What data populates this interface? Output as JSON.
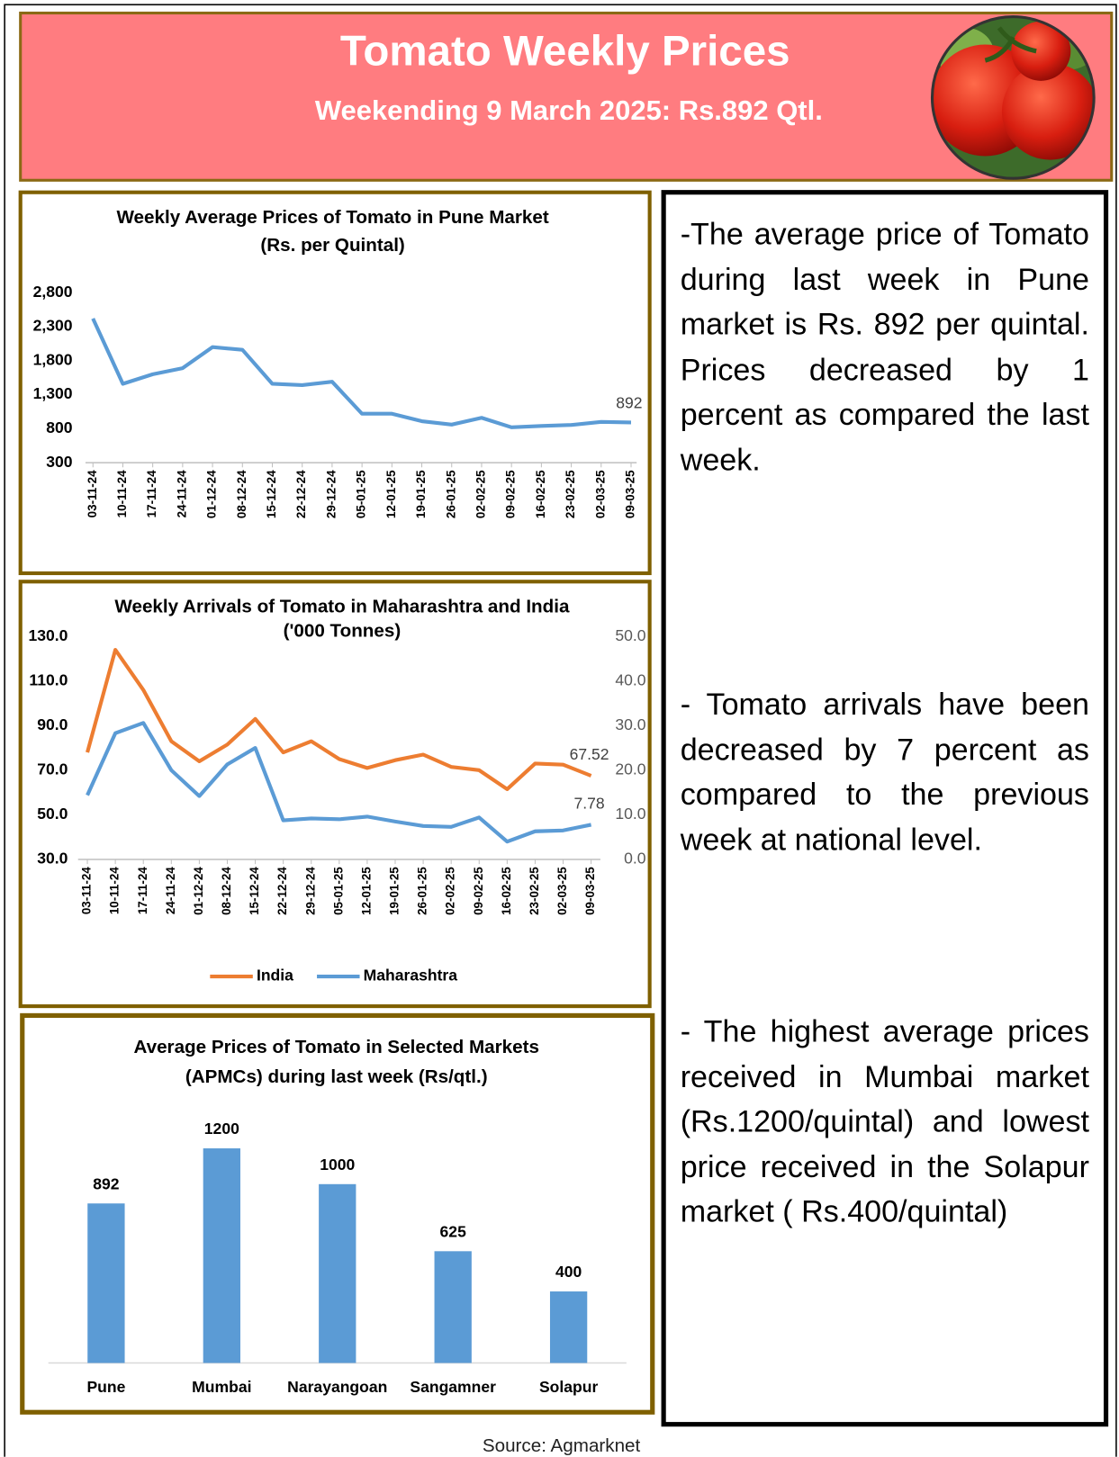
{
  "header": {
    "title": "Tomato Weekly Prices",
    "subtitle": "Weekending  9 March 2025: Rs.892 Qtl."
  },
  "chart_data": [
    {
      "type": "line",
      "title": "Weekly Average Prices of Tomato in Pune Market",
      "subtitle": "(Rs. per Quintal)",
      "x": [
        "03-11-24",
        "10-11-24",
        "17-11-24",
        "24-11-24",
        "01-12-24",
        "08-12-24",
        "15-12-24",
        "22-12-24",
        "29-12-24",
        "05-01-25",
        "12-01-25",
        "19-01-25",
        "26-01-25",
        "02-02-25",
        "09-02-25",
        "16-02-25",
        "23-02-25",
        "02-03-25",
        "09-03-25"
      ],
      "values": [
        2420,
        1460,
        1600,
        1690,
        2000,
        1960,
        1460,
        1440,
        1490,
        1020,
        1020,
        910,
        860,
        960,
        820,
        840,
        855,
        900,
        892
      ],
      "color": "#5b9bd5",
      "ylim": [
        300,
        2800
      ],
      "yticks": [
        300,
        800,
        {
          "value": 1300,
          "label": "1,300"
        },
        {
          "value": 1800,
          "label": "1,800"
        },
        {
          "value": 2300,
          "label": "2,300"
        },
        {
          "value": 2800,
          "label": "2,800"
        }
      ]
    },
    {
      "type": "line",
      "title": "Weekly Arrivals of Tomato in Maharashtra and India",
      "subtitle": "('000 Tonnes)",
      "x": [
        "03-11-24",
        "10-11-24",
        "17-11-24",
        "24-11-24",
        "01-12-24",
        "08-12-24",
        "15-12-24",
        "22-12-24",
        "29-12-24",
        "05-01-25",
        "12-01-25",
        "19-01-25",
        "26-01-25",
        "02-02-25",
        "09-02-25",
        "16-02-25",
        "23-02-25",
        "02-03-25",
        "09-03-25"
      ],
      "series": [
        {
          "name": "India",
          "color": "#ed7d31",
          "values": [
            78,
            124,
            106,
            83,
            74,
            81.5,
            93,
            78,
            83,
            75,
            71,
            74.5,
            77,
            71.5,
            70,
            61.5,
            73,
            72.5,
            67.52
          ]
        },
        {
          "name": "Maharashtra",
          "color": "#5b9bd5",
          "axis": "y2",
          "values": [
            14.4,
            28.3,
            30.6,
            20,
            14.2,
            21.3,
            25,
            8.75,
            9.2,
            9,
            9.6,
            8.5,
            7.5,
            7.3,
            9.4,
            4,
            6.3,
            6.5,
            7.78
          ]
        }
      ],
      "ylim": [
        30,
        130
      ],
      "yticks": [
        {
          "value": 30,
          "label": "30.0"
        },
        {
          "value": 50,
          "label": "50.0"
        },
        {
          "value": 70,
          "label": "70.0"
        },
        {
          "value": 90,
          "label": "90.0"
        },
        {
          "value": 110,
          "label": "110.0"
        },
        {
          "value": 130,
          "label": "130.0"
        }
      ],
      "y2lim": [
        0,
        50
      ],
      "y2ticks": [
        {
          "value": 0,
          "label": "0.0"
        },
        {
          "value": 10,
          "label": "10.0"
        },
        {
          "value": 20,
          "label": "20.0"
        },
        {
          "value": 30,
          "label": "30.0"
        },
        {
          "value": 40,
          "label": "40.0"
        },
        {
          "value": 50,
          "label": "50.0"
        }
      ],
      "legend": "bottom"
    },
    {
      "type": "bar",
      "title": "Average Prices of Tomato in Selected Markets",
      "subtitle": "(APMCs) during last week (Rs/qtl.)",
      "categories": [
        "Pune",
        "Mumbai",
        "Narayangoan",
        "Sangamner",
        "Solapur"
      ],
      "values": [
        892,
        1200,
        1000,
        625,
        400
      ],
      "color": "#5b9bd5"
    }
  ],
  "text_panel": {
    "paragraphs": [
      "-The average price of Tomato during last week in Pune market is Rs. 892 per quintal. Prices decreased by 1 percent as compared the last week.",
      "- Tomato arrivals have been decreased by 7 percent as compared to the previous week at national level.",
      "- The highest average prices received in Mumbai market (Rs.1200/quintal) and lowest price received in the Solapur market ( Rs.400/quintal)"
    ]
  },
  "source": "Source: Agmarknet"
}
